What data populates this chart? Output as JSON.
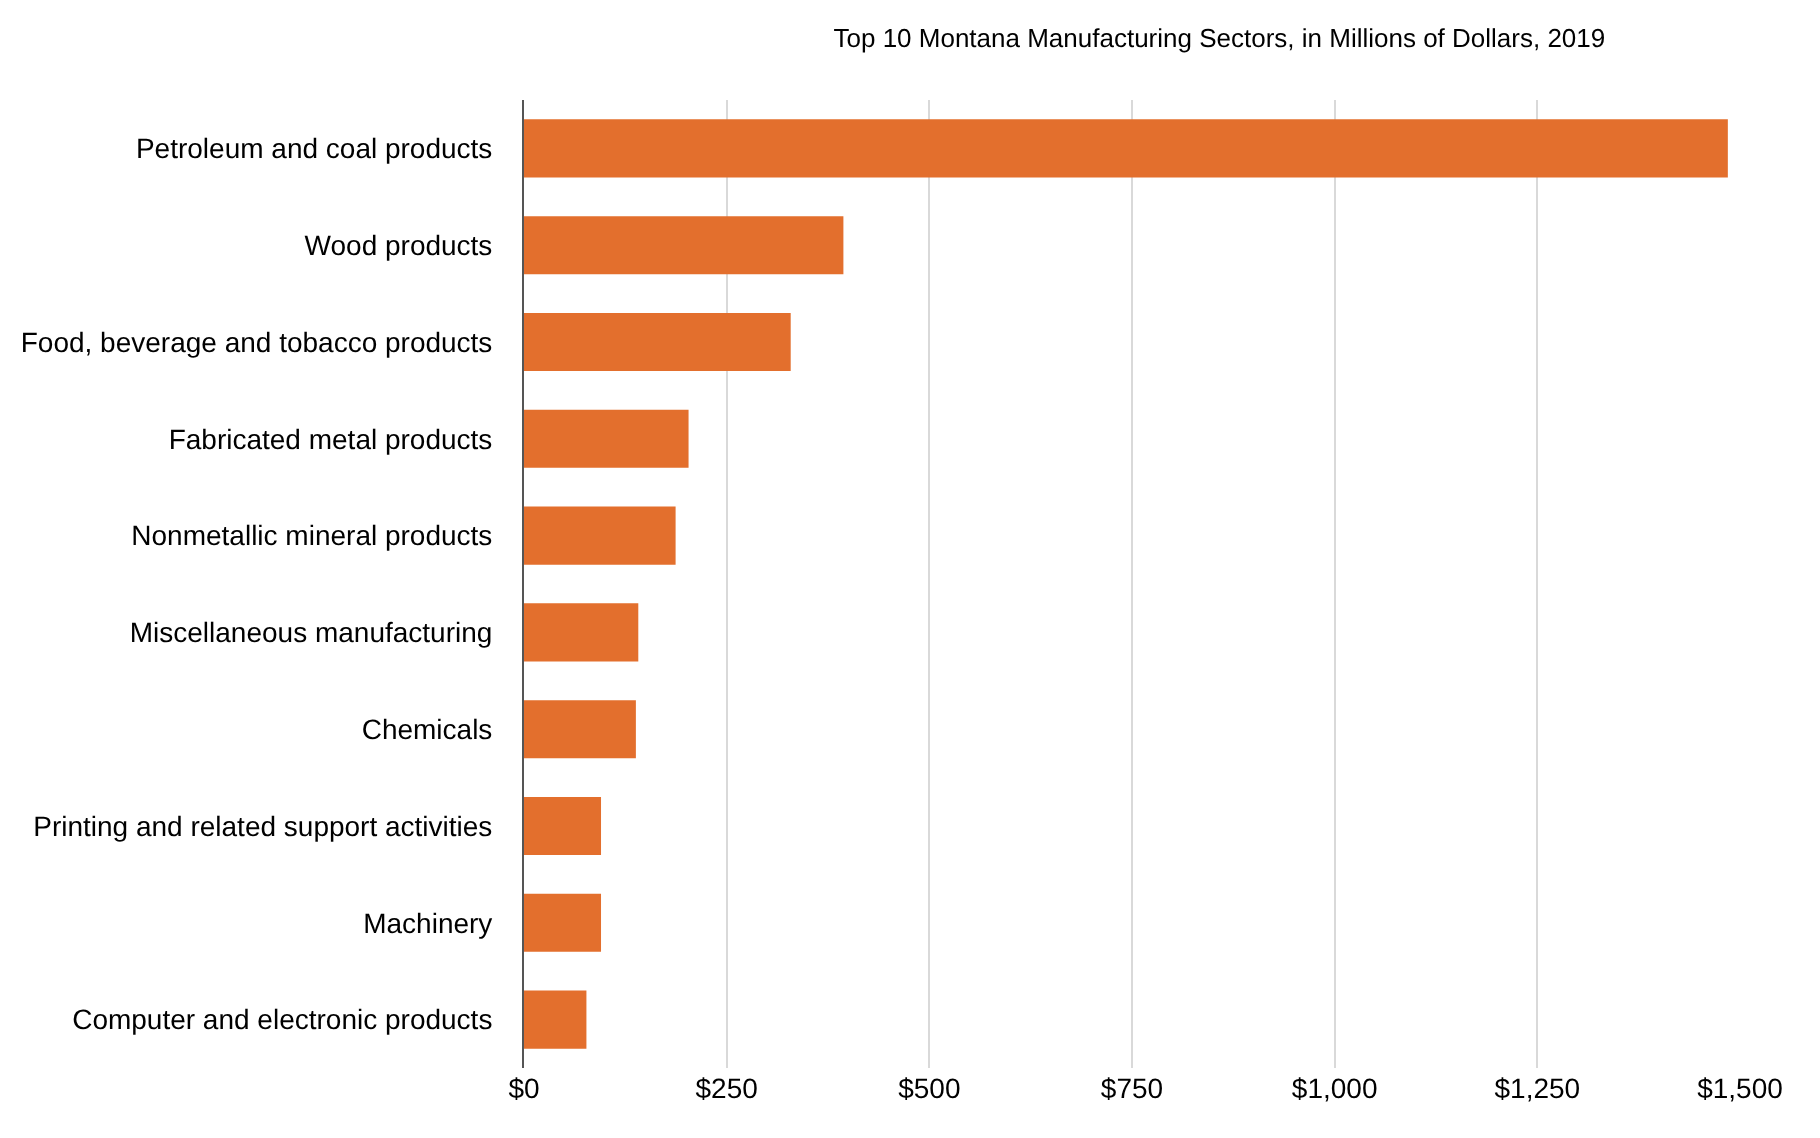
{
  "chart_data": {
    "type": "bar",
    "orientation": "horizontal",
    "title": "Top 10 Montana Manufacturing Sectors, in Millions of Dollars, 2019",
    "categories": [
      "Petroleum and coal products",
      "Wood products",
      "Food, beverage and tobacco products",
      "Fabricated metal products",
      "Nonmetallic mineral products",
      "Miscellaneous manufacturing",
      "Chemicals",
      "Printing and related support activities",
      "Machinery",
      "Computer and electronic products"
    ],
    "values": [
      1485,
      394,
      329,
      203,
      187,
      141,
      138,
      95,
      95,
      77
    ],
    "color": "#e36f2d",
    "xlim": [
      0,
      1500
    ],
    "xticks": [
      {
        "value": 0,
        "label": "$0"
      },
      {
        "value": 250,
        "label": "$250"
      },
      {
        "value": 500,
        "label": "$500"
      },
      {
        "value": 750,
        "label": "$750"
      },
      {
        "value": 1000,
        "label": "$1,000"
      },
      {
        "value": 1250,
        "label": "$1,250"
      },
      {
        "value": 1500,
        "label": "$1,500"
      }
    ],
    "grid": "x"
  }
}
